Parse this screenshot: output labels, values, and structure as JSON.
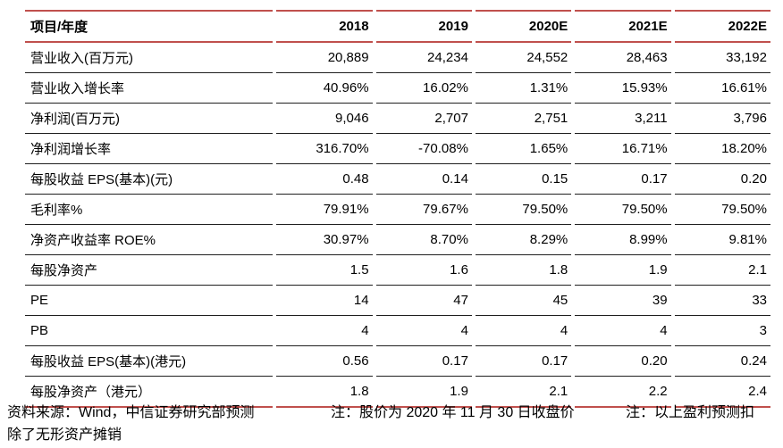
{
  "table": {
    "header": [
      "项目/年度",
      "2018",
      "2019",
      "2020E",
      "2021E",
      "2022E"
    ],
    "rows": [
      {
        "label": "营业收入(百万元)",
        "values": [
          "20,889",
          "24,234",
          "24,552",
          "28,463",
          "33,192"
        ]
      },
      {
        "label": "营业收入增长率",
        "values": [
          "40.96%",
          "16.02%",
          "1.31%",
          "15.93%",
          "16.61%"
        ]
      },
      {
        "label": "净利润(百万元)",
        "values": [
          "9,046",
          "2,707",
          "2,751",
          "3,211",
          "3,796"
        ]
      },
      {
        "label": "净利润增长率",
        "values": [
          "316.70%",
          "-70.08%",
          "1.65%",
          "16.71%",
          "18.20%"
        ]
      },
      {
        "label": "每股收益 EPS(基本)(元)",
        "values": [
          "0.48",
          "0.14",
          "0.15",
          "0.17",
          "0.20"
        ]
      },
      {
        "label": "毛利率%",
        "values": [
          "79.91%",
          "79.67%",
          "79.50%",
          "79.50%",
          "79.50%"
        ]
      },
      {
        "label": "净资产收益率 ROE%",
        "values": [
          "30.97%",
          "8.70%",
          "8.29%",
          "8.99%",
          "9.81%"
        ]
      },
      {
        "label": "每股净资产",
        "values": [
          "1.5",
          "1.6",
          "1.8",
          "1.9",
          "2.1"
        ]
      },
      {
        "label": "PE",
        "values": [
          "14",
          "47",
          "45",
          "39",
          "33"
        ]
      },
      {
        "label": "PB",
        "values": [
          "4",
          "4",
          "4",
          "4",
          "3"
        ]
      },
      {
        "label": "每股收益 EPS(基本)(港元)",
        "values": [
          "0.56",
          "0.17",
          "0.17",
          "0.20",
          "0.24"
        ]
      },
      {
        "label": "每股净资产（港元）",
        "values": [
          "1.8",
          "1.9",
          "2.1",
          "2.2",
          "2.4"
        ]
      }
    ]
  },
  "footer": {
    "source": "资料来源：Wind，中信证券研究部预测",
    "price_note": "注：股价为 2020 年 11 月 30 日收盘价",
    "forecast_note": "注：以上盈利预测扣",
    "forecast_note_continuation": "除了无形资产摊销"
  },
  "colors": {
    "accent_red": "#c0504d",
    "row_line": "#1f1f1f",
    "text": "#000000"
  }
}
